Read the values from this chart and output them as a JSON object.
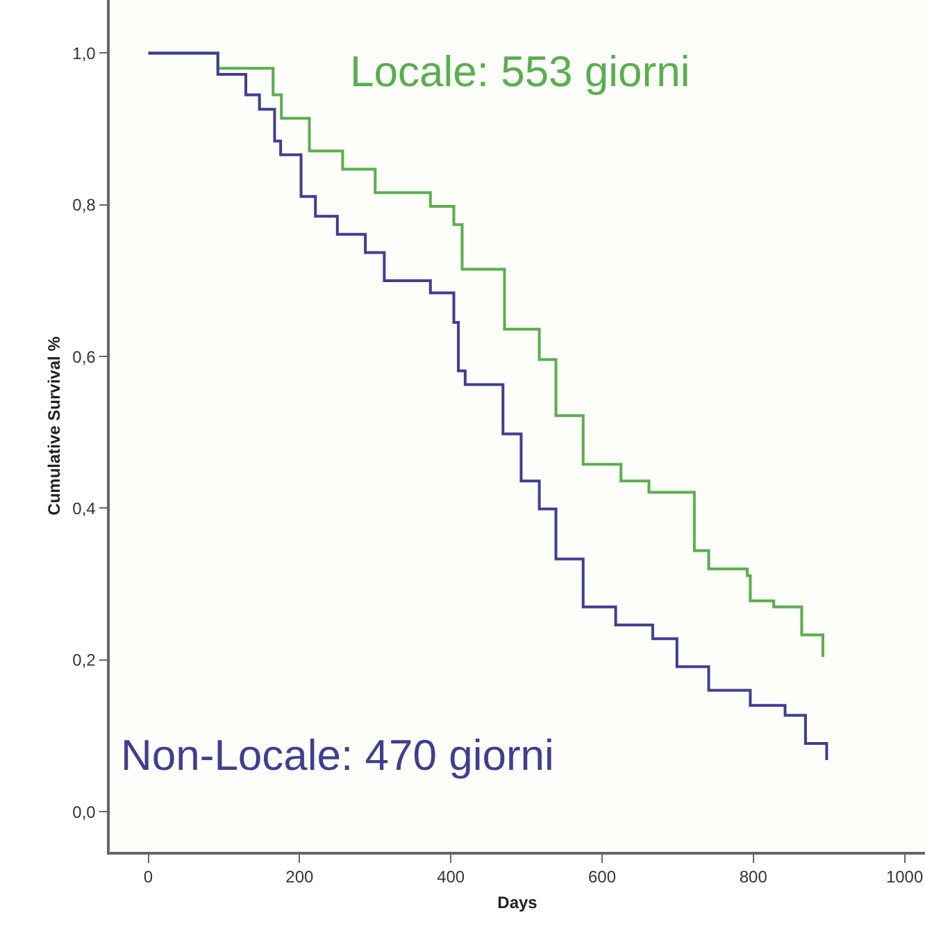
{
  "chart_data": {
    "type": "step",
    "xlabel": "Days",
    "ylabel": "Cumulative Survival %",
    "xlim": [
      -51,
      1027
    ],
    "ylim": [
      -0.053,
      1.07
    ],
    "xticks": [
      0,
      200,
      400,
      600,
      800,
      1000
    ],
    "yticks": [
      {
        "value": 0,
        "label": "0,0"
      },
      {
        "value": 0.2,
        "label": "0,2"
      },
      {
        "value": 0.4,
        "label": "0,4"
      },
      {
        "value": 0.6,
        "label": "0,6"
      },
      {
        "value": 0.8,
        "label": "0,8"
      },
      {
        "value": 1.0,
        "label": "1,0"
      }
    ],
    "grid": false,
    "legend": false,
    "marker": "none",
    "line_style": "solid",
    "series": [
      {
        "name": "Locale: 553 giorni",
        "color": "#5aae4e",
        "x": [
          0,
          92,
          121,
          165,
          176,
          213,
          257,
          300,
          373,
          404,
          415,
          460,
          471,
          517,
          539,
          575,
          625,
          662,
          722,
          741,
          792,
          796,
          827,
          864,
          892
        ],
        "values": [
          1.0,
          0.98,
          0.98,
          0.945,
          0.914,
          0.871,
          0.847,
          0.816,
          0.798,
          0.774,
          0.715,
          0.715,
          0.636,
          0.596,
          0.522,
          0.458,
          0.436,
          0.421,
          0.344,
          0.32,
          0.311,
          0.278,
          0.27,
          0.233,
          0.204
        ]
      },
      {
        "name": "Non-Locale: 470 giorni",
        "color": "#3f3f8f",
        "x": [
          0,
          92,
          119,
          129,
          147,
          167,
          175,
          202,
          221,
          250,
          287,
          312,
          373,
          404,
          410,
          419,
          460,
          469,
          493,
          517,
          539,
          575,
          618,
          667,
          699,
          741,
          796,
          842,
          869,
          897
        ],
        "values": [
          1.0,
          0.972,
          0.972,
          0.945,
          0.926,
          0.884,
          0.866,
          0.811,
          0.785,
          0.761,
          0.737,
          0.7,
          0.684,
          0.645,
          0.581,
          0.563,
          0.563,
          0.498,
          0.436,
          0.399,
          0.333,
          0.27,
          0.246,
          0.228,
          0.191,
          0.16,
          0.14,
          0.127,
          0.09,
          0.068
        ]
      }
    ]
  }
}
